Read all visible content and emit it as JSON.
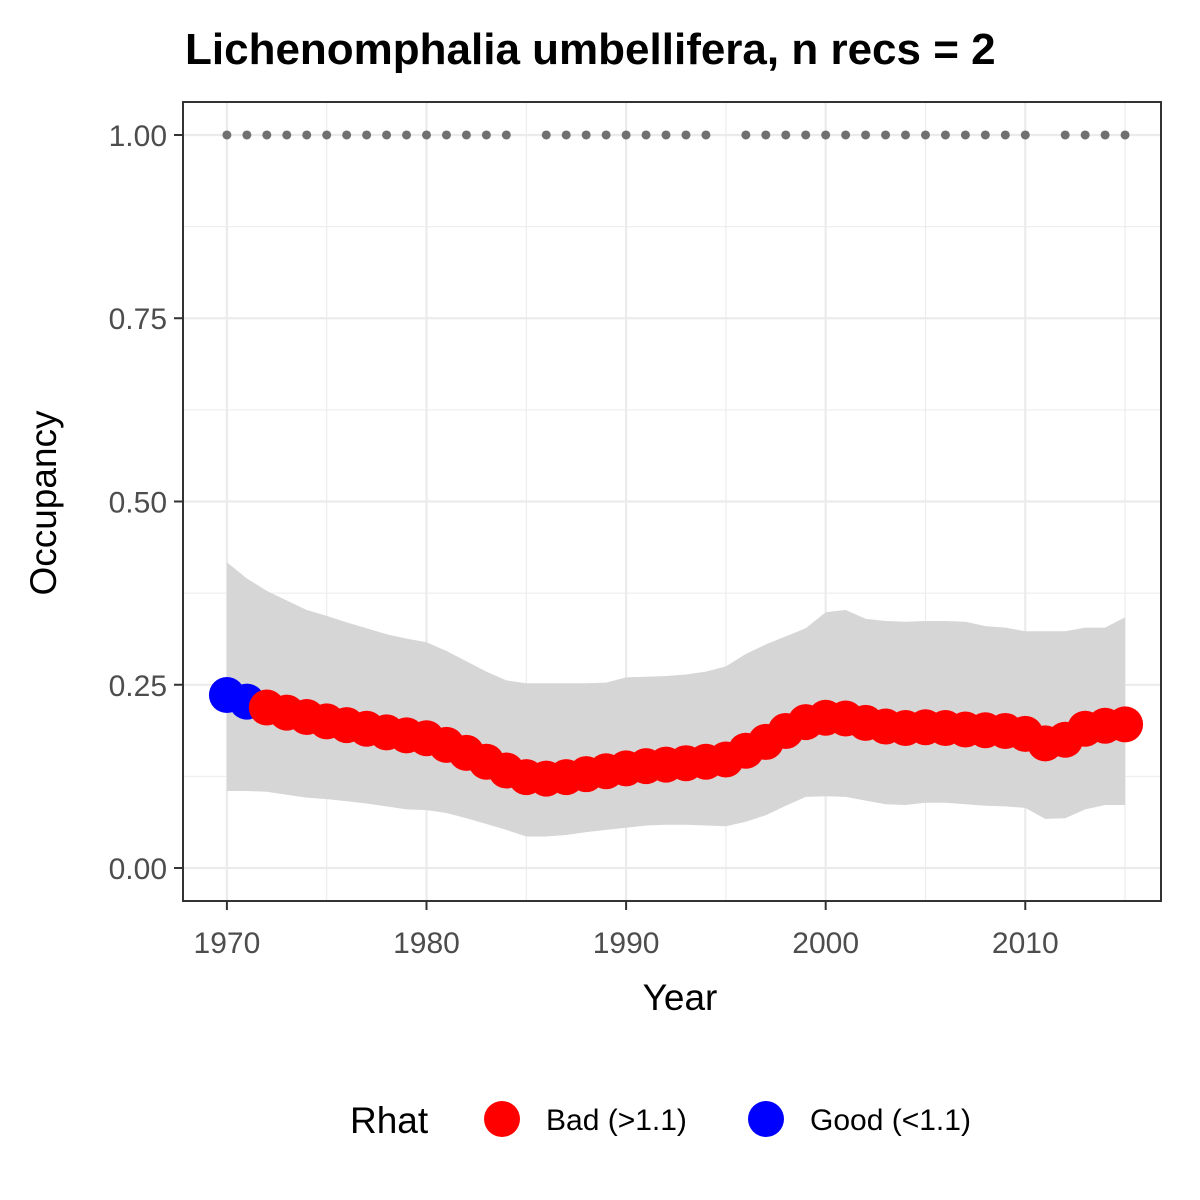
{
  "chart_data": {
    "type": "line",
    "title": "Lichenomphalia umbellifera, n recs = 2",
    "xlabel": "Year",
    "ylabel": "Occupancy",
    "xlim": [
      1967.8,
      2016.8
    ],
    "ylim": [
      -0.045,
      1.045
    ],
    "x_ticks": [
      1970,
      1980,
      1990,
      2000,
      2010
    ],
    "y_ticks": [
      0,
      0.25,
      0.5,
      0.75,
      1
    ],
    "y_tick_labels": [
      "0.00",
      "0.25",
      "0.50",
      "0.75",
      "1.00"
    ],
    "grid": true,
    "legend": {
      "title": "Rhat",
      "position": "bottom",
      "entries": [
        {
          "label": "Bad (>1.1)",
          "color": "#ff0000"
        },
        {
          "label": "Good (<1.1)",
          "color": "#0000ff"
        }
      ]
    },
    "series": [
      {
        "name": "Occupancy",
        "x": [
          1970,
          1971,
          1972,
          1973,
          1974,
          1975,
          1976,
          1977,
          1978,
          1979,
          1980,
          1981,
          1982,
          1983,
          1984,
          1985,
          1986,
          1987,
          1988,
          1989,
          1990,
          1991,
          1992,
          1993,
          1994,
          1995,
          1996,
          1997,
          1998,
          1999,
          2000,
          2001,
          2002,
          2003,
          2004,
          2005,
          2006,
          2007,
          2008,
          2009,
          2010,
          2011,
          2012,
          2013,
          2014,
          2015
        ],
        "y": [
          0.236,
          0.227,
          0.219,
          0.212,
          0.206,
          0.2,
          0.195,
          0.19,
          0.185,
          0.181,
          0.177,
          0.168,
          0.157,
          0.145,
          0.133,
          0.124,
          0.122,
          0.124,
          0.128,
          0.132,
          0.136,
          0.139,
          0.141,
          0.143,
          0.145,
          0.148,
          0.16,
          0.172,
          0.187,
          0.199,
          0.205,
          0.204,
          0.198,
          0.193,
          0.191,
          0.192,
          0.191,
          0.189,
          0.188,
          0.187,
          0.183,
          0.17,
          0.175,
          0.19,
          0.194,
          0.196
        ],
        "rhat": [
          "Good",
          "Good",
          "Bad",
          "Bad",
          "Bad",
          "Bad",
          "Bad",
          "Bad",
          "Bad",
          "Bad",
          "Bad",
          "Bad",
          "Bad",
          "Bad",
          "Bad",
          "Bad",
          "Bad",
          "Bad",
          "Bad",
          "Bad",
          "Bad",
          "Bad",
          "Bad",
          "Bad",
          "Bad",
          "Bad",
          "Bad",
          "Bad",
          "Bad",
          "Bad",
          "Bad",
          "Bad",
          "Bad",
          "Bad",
          "Bad",
          "Bad",
          "Bad",
          "Bad",
          "Bad",
          "Bad",
          "Bad",
          "Bad",
          "Bad",
          "Bad",
          "Bad",
          "Bad"
        ],
        "lower": [
          0.105,
          0.105,
          0.104,
          0.1,
          0.096,
          0.094,
          0.091,
          0.088,
          0.084,
          0.08,
          0.079,
          0.075,
          0.068,
          0.06,
          0.052,
          0.043,
          0.043,
          0.045,
          0.049,
          0.052,
          0.055,
          0.058,
          0.059,
          0.059,
          0.058,
          0.057,
          0.063,
          0.072,
          0.085,
          0.097,
          0.098,
          0.097,
          0.092,
          0.087,
          0.086,
          0.089,
          0.089,
          0.087,
          0.085,
          0.084,
          0.082,
          0.067,
          0.068,
          0.08,
          0.086,
          0.086
        ],
        "upper": [
          0.417,
          0.395,
          0.378,
          0.365,
          0.352,
          0.344,
          0.335,
          0.327,
          0.319,
          0.313,
          0.308,
          0.296,
          0.282,
          0.268,
          0.256,
          0.252,
          0.252,
          0.252,
          0.252,
          0.253,
          0.26,
          0.261,
          0.262,
          0.264,
          0.268,
          0.275,
          0.292,
          0.305,
          0.316,
          0.327,
          0.349,
          0.352,
          0.34,
          0.337,
          0.336,
          0.337,
          0.337,
          0.336,
          0.33,
          0.328,
          0.323,
          0.323,
          0.323,
          0.328,
          0.328,
          0.342
        ]
      },
      {
        "name": "Records",
        "x": [
          1970,
          1971,
          1972,
          1973,
          1974,
          1975,
          1976,
          1977,
          1978,
          1979,
          1980,
          1981,
          1982,
          1983,
          1984,
          1986,
          1987,
          1988,
          1989,
          1990,
          1991,
          1992,
          1993,
          1994,
          1996,
          1997,
          1998,
          1999,
          2000,
          2001,
          2002,
          2003,
          2004,
          2005,
          2006,
          2007,
          2008,
          2009,
          2010,
          2012,
          2013,
          2014,
          2015
        ],
        "y": [
          1,
          1,
          1,
          1,
          1,
          1,
          1,
          1,
          1,
          1,
          1,
          1,
          1,
          1,
          1,
          1,
          1,
          1,
          1,
          1,
          1,
          1,
          1,
          1,
          1,
          1,
          1,
          1,
          1,
          1,
          1,
          1,
          1,
          1,
          1,
          1,
          1,
          1,
          1,
          1,
          1,
          1,
          1
        ]
      }
    ]
  }
}
